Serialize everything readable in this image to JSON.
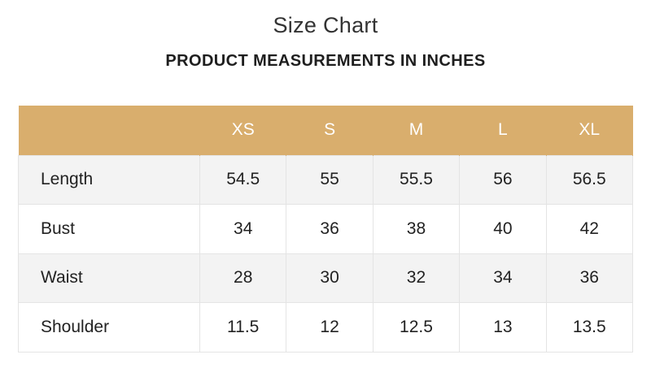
{
  "title": "Size Chart",
  "subtitle": "PRODUCT MEASUREMENTS IN INCHES",
  "table": {
    "corner": "",
    "sizes": [
      "XS",
      "S",
      "M",
      "L",
      "XL"
    ],
    "rows": [
      {
        "label": "Length",
        "values": [
          "54.5",
          "55",
          "55.5",
          "56",
          "56.5"
        ]
      },
      {
        "label": "Bust",
        "values": [
          "34",
          "36",
          "38",
          "40",
          "42"
        ]
      },
      {
        "label": "Waist",
        "values": [
          "28",
          "30",
          "32",
          "34",
          "36"
        ]
      },
      {
        "label": "Shoulder",
        "values": [
          "11.5",
          "12",
          "12.5",
          "13",
          "13.5"
        ]
      }
    ]
  },
  "colors": {
    "header_background": "#d9ae6d",
    "header_text": "#ffffff",
    "shaded_row": "#f3f3f3",
    "plain_row": "#ffffff",
    "border": "#e4e4e4"
  }
}
